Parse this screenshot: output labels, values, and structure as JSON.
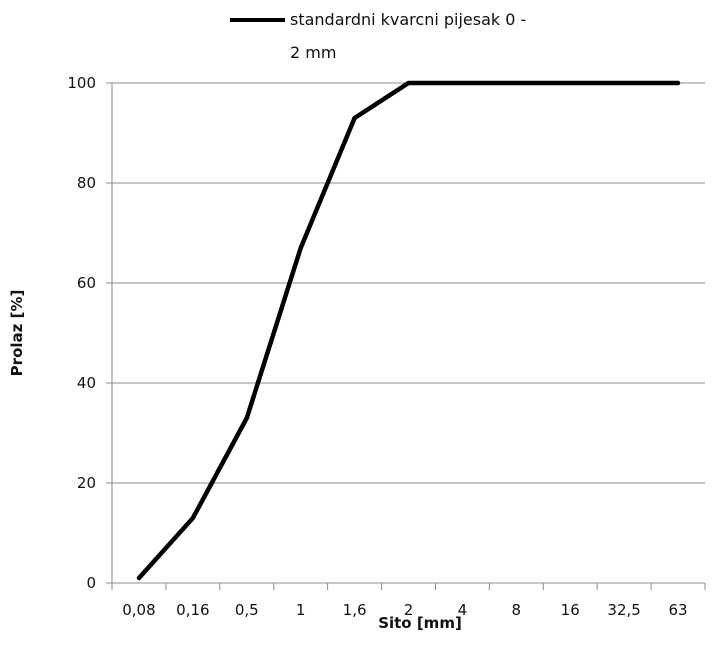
{
  "chart_data": {
    "type": "line",
    "categories": [
      "0,08",
      "0,16",
      "0,5",
      "1",
      "1,6",
      "2",
      "4",
      "8",
      "16",
      "32,5",
      "63"
    ],
    "series": [
      {
        "name": "standardni kvarcni pijesak 0 - 2 mm",
        "legend_lines": [
          "standardni kvarcni pijesak 0 -",
          "2 mm"
        ],
        "values": [
          1,
          13,
          33,
          67,
          93,
          100,
          100,
          100,
          100,
          100,
          100
        ],
        "color": "#000000"
      }
    ],
    "xlabel": "Sito [mm]",
    "ylabel": "Prolaz [%]",
    "ylim": [
      0,
      100
    ],
    "yticks": [
      0,
      20,
      40,
      60,
      80,
      100
    ],
    "grid": true,
    "legend_position": "top"
  }
}
